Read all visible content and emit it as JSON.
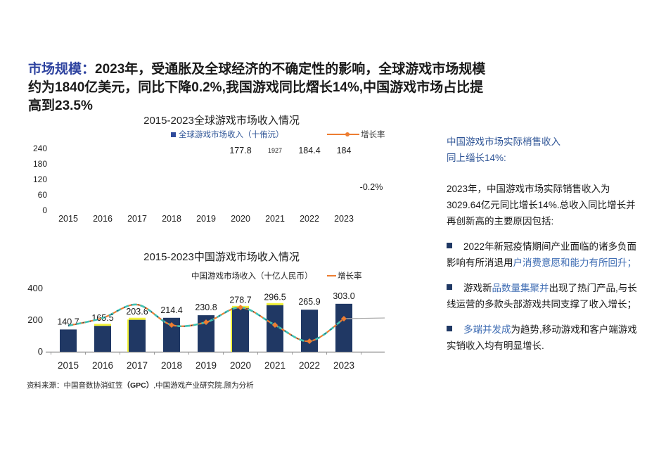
{
  "headline": {
    "segments": [
      {
        "t": "市场规模：",
        "c": "hblue",
        "b": true
      },
      {
        "t": "2023年，受通胀及全球经济的不确定性的影响，全球游戏市场规模约为1840亿美元，同比下降0.2%,我国游戏同比熠长14%,中国游戏市场占比提高到23.5%",
        "c": "dark",
        "b": true
      }
    ]
  },
  "chart_data": [
    {
      "type": "bar",
      "note": "source render shows only labels; bars and line are not drawn",
      "title": "2015-2023全球游戏市场收入情况",
      "legend_bar": "全球游戏市场收入（十侑沅）",
      "legend_line": "增长率",
      "legend_position": "top",
      "categories": [
        "2015",
        "2016",
        "2017",
        "2018",
        "2019",
        "2020",
        "2021",
        "2022",
        "2023"
      ],
      "yticks": [
        "240",
        "180",
        "120",
        "60",
        "0"
      ],
      "ylim": [
        0,
        240
      ],
      "grid": false,
      "value_labels": [
        {
          "category": "2020",
          "text": "177.8",
          "small": false
        },
        {
          "category": "2021",
          "text": "1927",
          "small": true
        },
        {
          "category": "2022",
          "text": "184.4",
          "small": false
        },
        {
          "category": "2023",
          "text": "184",
          "small": false
        }
      ],
      "annotation": "-0.2%"
    },
    {
      "type": "bar",
      "title": "2015-2023中国游戏市场收入情况",
      "legend_bar": "中国游戏市场收入（十亿人民币）",
      "legend_line": "增长率",
      "legend_position": "top",
      "categories": [
        "2015",
        "2016",
        "2017",
        "2018",
        "2019",
        "2020",
        "2021",
        "2022",
        "2023"
      ],
      "values": [
        140.7,
        165.5,
        203.6,
        214.4,
        230.8,
        278.7,
        296.5,
        265.9,
        303.0
      ],
      "labels": [
        "140.7",
        "165.5",
        "203.6",
        "214.4",
        "230.8",
        "278.7",
        "296.5",
        "265.9",
        "303.0"
      ],
      "yticks": [
        "0",
        "200",
        "400"
      ],
      "ytick_values": [
        0,
        200,
        400
      ],
      "ylim": [
        0,
        400
      ],
      "grid": false,
      "growth_pct_est": [
        3.5,
        9,
        18.5,
        4,
        6,
        16.5,
        4,
        -7.5,
        8.5
      ],
      "growth_range_est": [
        -15,
        30
      ],
      "marker_indices": [
        3,
        4,
        5,
        6,
        7,
        8
      ],
      "cap_indices": [
        1,
        2,
        5,
        6
      ],
      "left_strip_indices": [
        2,
        5
      ],
      "colors": {
        "bar": "#203864",
        "cap": "#F2F23A",
        "line_teal": "#3EC3B4",
        "line_orange": "#ED7D31",
        "dot_navy": "#1F3864",
        "axis": "#9A9A9A",
        "tail": "#ADADAD"
      }
    }
  ],
  "side_panel": {
    "heading_line1": "中国游戏市场实际梢售收入",
    "heading_line2": "同上缁长14%:",
    "intro": "2023年，中国游戏市场实际销售收入为3029.64亿元同比增长14%.总收入同比增长并再创新高的主要原因包括:",
    "bullets": [
      {
        "segments": [
          {
            "t": "2022年新冠疫情期间产业面临的诸多负面影响有所消退用",
            "c": "dark"
          },
          {
            "t": "户消费意愿和能力有所回升；",
            "c": "blue"
          }
        ]
      },
      {
        "segments": [
          {
            "t": "游戏新",
            "c": "dark"
          },
          {
            "t": "品数量集聚并",
            "c": "blue"
          },
          {
            "t": "出现了热门产品,与长线运营的多款头部游戏共同支撑了收入增长；",
            "c": "dark"
          }
        ]
      },
      {
        "segments": [
          {
            "t": "多端并发成",
            "c": "blue"
          },
          {
            "t": "为趋势,移动游戏和客户端游戏实销收入均有明显增长.",
            "c": "dark"
          }
        ]
      }
    ]
  },
  "footer": {
    "segments": [
      {
        "t": "资料来源：中国音数协消虹笠",
        "c": "dark2"
      },
      {
        "t": "（GPC）",
        "c": "dark2",
        "b": true
      },
      {
        "t": ",中国游戏产业研究院.顾为分析",
        "c": "dark2"
      }
    ]
  }
}
